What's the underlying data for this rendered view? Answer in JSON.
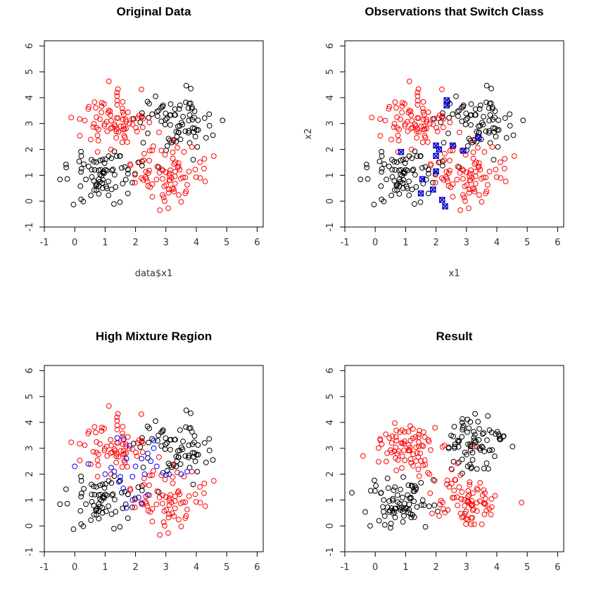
{
  "chart_data": [
    {
      "type": "scatter",
      "title": "Original Data",
      "xlabel": "data$x1",
      "ylabel": "",
      "xlim": [
        -1,
        6.2
      ],
      "ylim": [
        -1,
        6.2
      ],
      "xticks": [
        "-1",
        "0",
        "1",
        "2",
        "3",
        "4",
        "5",
        "6"
      ],
      "yticks": [
        "-1",
        "0",
        "1",
        "2",
        "3",
        "4",
        "5",
        "6"
      ],
      "grid": false,
      "series": [
        {
          "color": "#000000",
          "marker": "circle-open",
          "clusters": [
            [
              3.3,
              3.1,
              0.6,
              0.6,
              80
            ],
            [
              0.9,
              1.0,
              0.6,
              0.5,
              80
            ]
          ]
        },
        {
          "color": "#ff0000",
          "marker": "circle-open",
          "clusters": [
            [
              1.2,
              3.0,
              0.6,
              0.55,
              80
            ],
            [
              3.0,
              1.0,
              0.6,
              0.5,
              80
            ]
          ]
        }
      ]
    },
    {
      "type": "scatter",
      "title": "Observations that Switch Class",
      "xlabel": "x1",
      "ylabel": "x2",
      "xlim": [
        -1,
        6.2
      ],
      "ylim": [
        -1,
        6.2
      ],
      "xticks": [
        "-1",
        "0",
        "1",
        "2",
        "3",
        "4",
        "5",
        "6"
      ],
      "yticks": [
        "-1",
        "0",
        "1",
        "2",
        "3",
        "4",
        "5",
        "6"
      ],
      "grid": false,
      "series": [
        {
          "color": "#000000",
          "marker": "circle-open",
          "clusters": [
            [
              3.3,
              3.1,
              0.6,
              0.6,
              80
            ],
            [
              0.9,
              1.0,
              0.6,
              0.5,
              80
            ]
          ]
        },
        {
          "color": "#ff0000",
          "marker": "circle-open",
          "clusters": [
            [
              1.2,
              3.0,
              0.6,
              0.55,
              80
            ],
            [
              3.0,
              1.0,
              0.6,
              0.5,
              80
            ]
          ]
        },
        {
          "color": "#0000cc",
          "marker": "cross-box",
          "points": [
            [
              2.35,
              3.9
            ],
            [
              2.35,
              3.7
            ],
            [
              3.4,
              2.45
            ],
            [
              2.55,
              2.15
            ],
            [
              0.85,
              1.9
            ],
            [
              2.0,
              2.15
            ],
            [
              2.1,
              2.0
            ],
            [
              2.0,
              1.75
            ],
            [
              2.9,
              1.95
            ],
            [
              2.0,
              1.15
            ],
            [
              1.55,
              0.85
            ],
            [
              1.5,
              0.3
            ],
            [
              1.9,
              0.45
            ],
            [
              2.2,
              0.05
            ],
            [
              2.3,
              -0.2
            ]
          ]
        }
      ]
    },
    {
      "type": "scatter",
      "title": "High Mixture Region",
      "xlabel": "",
      "ylabel": "",
      "xlim": [
        -1,
        6.2
      ],
      "ylim": [
        -1,
        6.2
      ],
      "xticks": [
        "-1",
        "0",
        "1",
        "2",
        "3",
        "4",
        "5",
        "6"
      ],
      "yticks": [
        "-1",
        "0",
        "1",
        "2",
        "3",
        "4",
        "5",
        "6"
      ],
      "grid": false,
      "series": [
        {
          "color": "#000000",
          "marker": "circle-open",
          "clusters": [
            [
              3.3,
              3.1,
              0.6,
              0.6,
              72
            ],
            [
              0.9,
              1.0,
              0.6,
              0.5,
              72
            ]
          ]
        },
        {
          "color": "#ff0000",
          "marker": "circle-open",
          "clusters": [
            [
              1.2,
              3.0,
              0.6,
              0.55,
              72
            ],
            [
              3.0,
              1.0,
              0.6,
              0.5,
              72
            ]
          ]
        },
        {
          "color": "#0000ff",
          "marker": "circle-open",
          "points": [
            [
              0.0,
              2.3
            ],
            [
              0.45,
              2.4
            ],
            [
              1.2,
              2.25
            ],
            [
              1.3,
              2.1
            ],
            [
              1.5,
              1.9
            ],
            [
              1.45,
              1.7
            ],
            [
              1.6,
              1.45
            ],
            [
              1.9,
              1.9
            ],
            [
              2.0,
              2.3
            ],
            [
              2.2,
              2.6
            ],
            [
              2.4,
              2.8
            ],
            [
              2.6,
              3.0
            ],
            [
              2.6,
              3.3
            ],
            [
              1.4,
              3.4
            ],
            [
              1.6,
              3.35
            ],
            [
              1.8,
              3.1
            ],
            [
              2.7,
              2.3
            ],
            [
              2.9,
              2.05
            ],
            [
              3.1,
              2.0
            ],
            [
              3.5,
              2.0
            ],
            [
              3.7,
              2.1
            ],
            [
              1.9,
              1.0
            ],
            [
              2.1,
              1.1
            ],
            [
              2.2,
              0.85
            ],
            [
              1.7,
              0.7
            ],
            [
              2.4,
              1.2
            ],
            [
              2.5,
              2.5
            ],
            [
              1.0,
              2.0
            ],
            [
              2.3,
              2.0
            ],
            [
              1.7,
              2.6
            ]
          ]
        }
      ]
    },
    {
      "type": "scatter",
      "title": "Result",
      "xlabel": "",
      "ylabel": "",
      "xlim": [
        -1,
        6.2
      ],
      "ylim": [
        -1,
        6.2
      ],
      "xticks": [
        "-1",
        "0",
        "1",
        "2",
        "3",
        "4",
        "5",
        "6"
      ],
      "yticks": [
        "-1",
        "0",
        "1",
        "2",
        "3",
        "4",
        "5",
        "6"
      ],
      "grid": false,
      "series": [
        {
          "color": "#000000",
          "marker": "circle-open",
          "clusters": [
            [
              3.3,
              3.1,
              0.55,
              0.55,
              80
            ],
            [
              0.9,
              1.0,
              0.55,
              0.5,
              80
            ]
          ]
        },
        {
          "color": "#ff0000",
          "marker": "circle-open",
          "clusters": [
            [
              1.1,
              3.0,
              0.55,
              0.5,
              80
            ],
            [
              3.0,
              1.0,
              0.55,
              0.5,
              80
            ]
          ]
        }
      ]
    }
  ]
}
